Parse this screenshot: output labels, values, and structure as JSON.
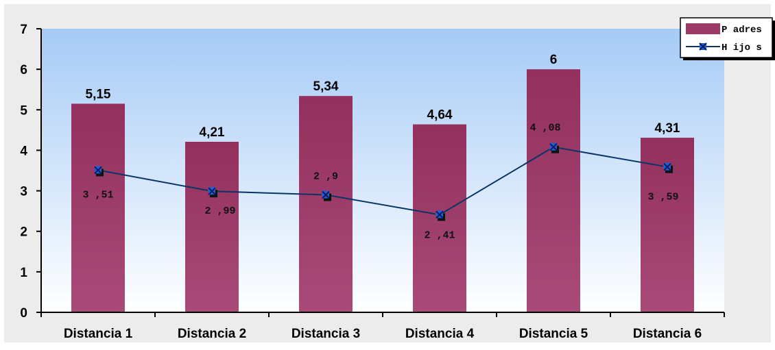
{
  "chart_data": {
    "type": "bar",
    "categories": [
      "Distancia 1",
      "Distancia 2",
      "Distancia 3",
      "Distancia 4",
      "Distancia 5",
      "Distancia 6"
    ],
    "ylim": [
      0,
      7
    ],
    "yticks": [
      "0",
      "1",
      "2",
      "3",
      "4",
      "5",
      "6",
      "7"
    ],
    "grid": false,
    "legend_position": "top-right",
    "series": [
      {
        "name": "P adres",
        "kind": "bar",
        "values": [
          5.15,
          4.21,
          5.34,
          4.64,
          6,
          4.31
        ],
        "labels": [
          "5,15",
          "4,21",
          "5,34",
          "4,64",
          "6",
          "4,31"
        ],
        "color": "#9b3a66"
      },
      {
        "name": "H ijo s",
        "kind": "line",
        "values": [
          3.51,
          2.99,
          2.9,
          2.41,
          4.08,
          3.59
        ],
        "labels": [
          "3 ,51",
          "2 ,99",
          "2 ,9",
          "2 ,41",
          "4 ,08",
          "3 ,59"
        ],
        "color": "#0a3466",
        "marker_color": "#1f5fd6"
      }
    ],
    "colors": {
      "plot_top": "#a6cbf6",
      "plot_bottom": "#ffffff",
      "frame_background": "#ececec"
    }
  }
}
